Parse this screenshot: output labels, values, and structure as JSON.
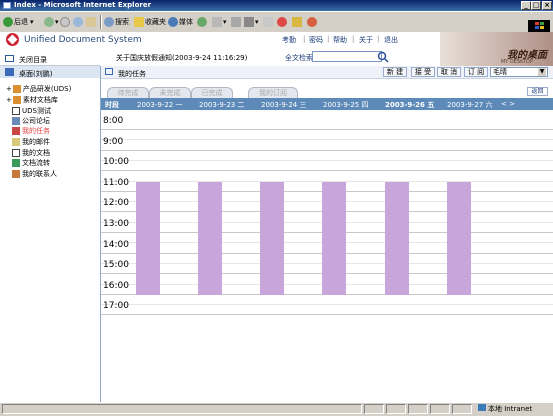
{
  "window": {
    "title": "Index - Microsoft Internet Explorer"
  },
  "browser_toolbar": {
    "back": "后退",
    "search": "搜索",
    "favorites": "收藏夹",
    "media": "媒体"
  },
  "app": {
    "name": "Unified Document System",
    "nav": [
      "考勤",
      "密码",
      "帮助",
      "关于",
      "退出"
    ],
    "banner_title": "我的桌面",
    "banner_sub": "MY DESKTOP"
  },
  "notice": {
    "text": "关于国庆放假通知(2003-9-24 11:16:29)"
  },
  "search": {
    "label": "全文检索",
    "value": ""
  },
  "sidebar": {
    "close_label": "关闭目录",
    "tree_root": "桌面(刘鹏)",
    "items": [
      {
        "label": "产品研发(UDS)",
        "color": "#000000"
      },
      {
        "label": "素材文档库",
        "color": "#000000"
      },
      {
        "label": "UDS测试",
        "color": "#000000"
      },
      {
        "label": "公司论坛",
        "color": "#000000"
      },
      {
        "label": "我的任务",
        "color": "#e04040"
      },
      {
        "label": "我的邮件",
        "color": "#000000"
      },
      {
        "label": "我的文档",
        "color": "#000000"
      },
      {
        "label": "文档流转",
        "color": "#000000"
      },
      {
        "label": "我的联系人",
        "color": "#000000"
      }
    ]
  },
  "main": {
    "title": "我的任务",
    "actions": [
      "新 建",
      "接 受",
      "取 消",
      "订 阅"
    ],
    "user_select": "毛晴",
    "tabs": [
      "待完成",
      "未完成",
      "已完成",
      "我的订阅"
    ],
    "return_label": "返回",
    "day_header": [
      "时段",
      "2003-9-22  一",
      "2003-9-23  二",
      "2003-9-24  三",
      "2003-9-25  四",
      "2003-9-26  五",
      "2003-9-27  六",
      "<  >"
    ],
    "hours": [
      "8:00",
      "9:00",
      "10:00",
      "11:00",
      "12:00",
      "13:00",
      "14:00",
      "15:00",
      "16:00",
      "17:00"
    ],
    "task_color": "#c8a6dc"
  },
  "status_bar": {
    "zone": "本地 Intranet"
  }
}
